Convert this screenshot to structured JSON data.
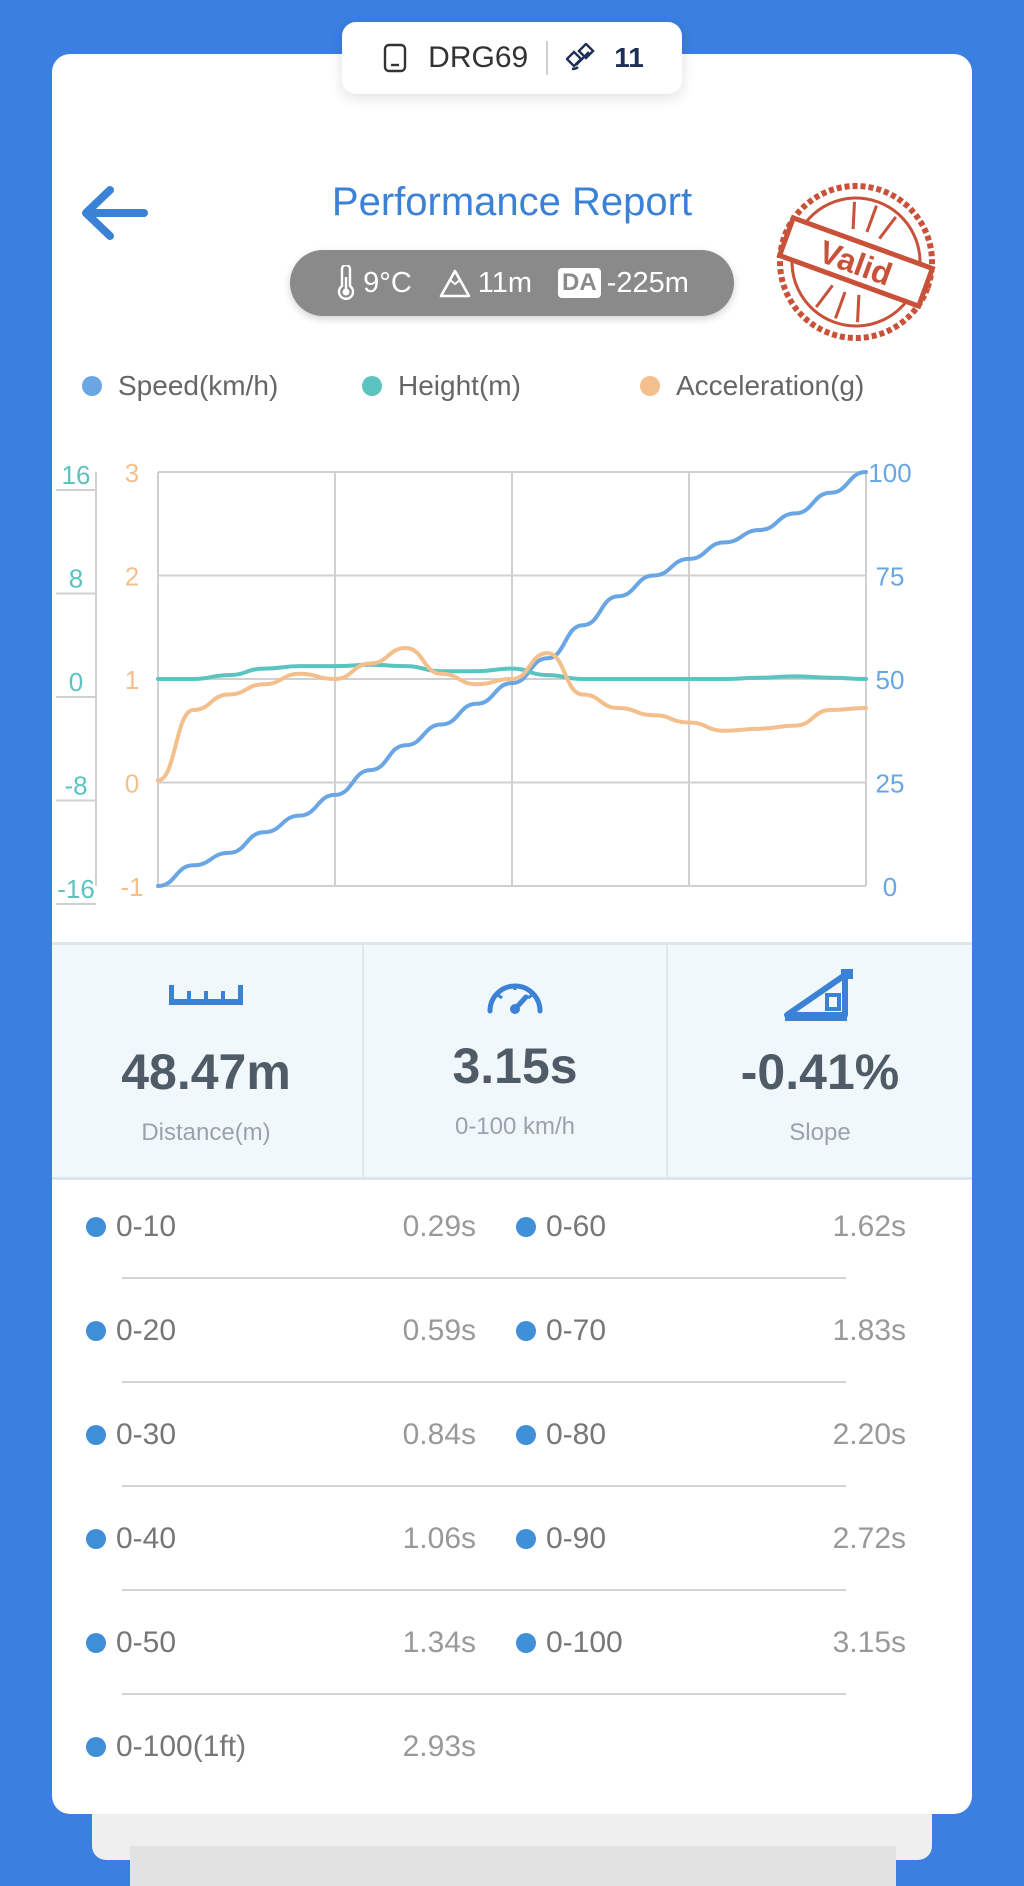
{
  "header": {
    "device_id": "DRG69",
    "satellites": "11",
    "title": "Performance Report",
    "stamp_text": "Valid"
  },
  "conditions": {
    "temperature": "9°C",
    "altitude": "11m",
    "da_label": "DA",
    "density_altitude": "-225m"
  },
  "legend": {
    "speed": "Speed(km/h)",
    "height": "Height(m)",
    "acceleration": "Acceleration(g)"
  },
  "colors": {
    "speed": "#6aa6e3",
    "height": "#5bc3c0",
    "acceleration": "#f3bf8c",
    "accent": "#3b82d6",
    "background": "#3b7fe0"
  },
  "chart_data": {
    "type": "line",
    "grid": true,
    "axes": {
      "height": {
        "ticks": [
          "16",
          "8",
          "0",
          "-8",
          "-16"
        ],
        "ylim": [
          -16,
          16
        ],
        "side": "left-outer"
      },
      "acceleration": {
        "ticks": [
          "3",
          "2",
          "1",
          "0",
          "-1"
        ],
        "ylim": [
          -1,
          3
        ],
        "side": "left-inner"
      },
      "speed": {
        "ticks": [
          "100",
          "75",
          "50",
          "25",
          "0"
        ],
        "ylim": [
          0,
          100
        ],
        "side": "right"
      }
    },
    "x": [
      0,
      0.05,
      0.1,
      0.15,
      0.2,
      0.25,
      0.3,
      0.35,
      0.4,
      0.45,
      0.5,
      0.55,
      0.6,
      0.65,
      0.7,
      0.75,
      0.8,
      0.85,
      0.9,
      0.95,
      1.0
    ],
    "series": [
      {
        "name": "Speed(km/h)",
        "axis": "speed",
        "values": [
          0,
          5,
          8,
          13,
          17,
          22,
          28,
          34,
          39,
          44,
          49,
          55,
          63,
          70,
          75,
          79,
          83,
          86,
          90,
          95,
          100
        ]
      },
      {
        "name": "Height(m)",
        "axis": "height",
        "values": [
          0,
          0,
          0.3,
          0.8,
          1.0,
          1.0,
          1.1,
          1.0,
          0.6,
          0.6,
          0.8,
          0.3,
          0,
          0,
          0,
          0,
          0,
          0.1,
          0.2,
          0.1,
          0
        ]
      },
      {
        "name": "Acceleration(g)",
        "axis": "acceleration",
        "values": [
          0.02,
          0.7,
          0.85,
          0.95,
          1.05,
          1.0,
          1.15,
          1.3,
          1.05,
          0.95,
          1.0,
          1.25,
          0.85,
          0.72,
          0.65,
          0.58,
          0.5,
          0.52,
          0.55,
          0.7,
          0.72
        ]
      }
    ]
  },
  "stats": {
    "distance": {
      "value": "48.47m",
      "label": "Distance(m)"
    },
    "time": {
      "value": "3.15s",
      "label": "0-100 km/h"
    },
    "slope": {
      "value": "-0.41%",
      "label": "Slope"
    }
  },
  "timings": {
    "left": [
      {
        "label": "0-10",
        "value": "0.29s"
      },
      {
        "label": "0-20",
        "value": "0.59s"
      },
      {
        "label": "0-30",
        "value": "0.84s"
      },
      {
        "label": "0-40",
        "value": "1.06s"
      },
      {
        "label": "0-50",
        "value": "1.34s"
      },
      {
        "label": "0-100(1ft)",
        "value": "2.93s"
      }
    ],
    "right": [
      {
        "label": "0-60",
        "value": "1.62s"
      },
      {
        "label": "0-70",
        "value": "1.83s"
      },
      {
        "label": "0-80",
        "value": "2.20s"
      },
      {
        "label": "0-90",
        "value": "2.72s"
      },
      {
        "label": "0-100",
        "value": "3.15s"
      }
    ]
  }
}
